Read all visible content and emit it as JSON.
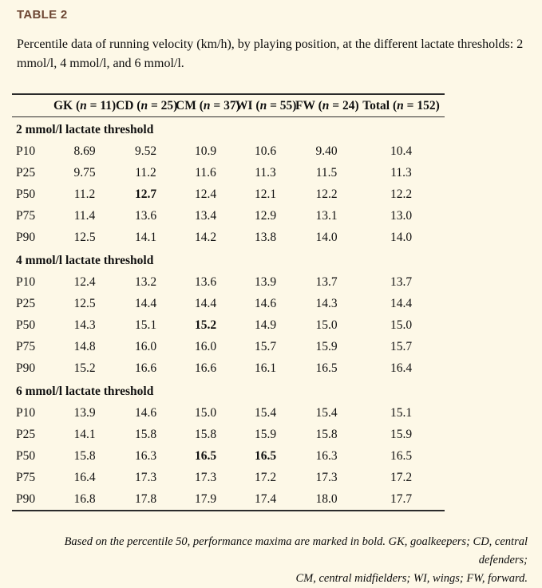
{
  "page": {
    "background_color": "#fdf8e7",
    "title_color": "#6d4633",
    "rule_color": "#2b2b2b"
  },
  "table_label": "TABLE 2",
  "caption_lines": [
    "Percentile data of running velocity (km/h), by playing position, at the different lactate thresholds: 2",
    "mmol/l, 4 mmol/l, and 6 mmol/l."
  ],
  "table": {
    "columns": [
      {
        "prefix": "GK (",
        "n": "n",
        "suffix": " = 11)"
      },
      {
        "prefix": "CD (",
        "n": "n",
        "suffix": " = 25)"
      },
      {
        "prefix": "CM (",
        "n": "n",
        "suffix": " = 37)"
      },
      {
        "prefix": "WI (",
        "n": "n",
        "suffix": " = 55)"
      },
      {
        "prefix": "FW (",
        "n": "n",
        "suffix": " = 24)"
      },
      {
        "prefix": "Total (",
        "n": "n",
        "suffix": " = 152)"
      }
    ],
    "sections": [
      {
        "header": "2 mmol/l lactate threshold",
        "rows": [
          {
            "label": "P10",
            "values": [
              "8.69",
              "9.52",
              "10.9",
              "10.6",
              "9.40",
              "10.4"
            ],
            "bold": []
          },
          {
            "label": "P25",
            "values": [
              "9.75",
              "11.2",
              "11.6",
              "11.3",
              "11.5",
              "11.3"
            ],
            "bold": []
          },
          {
            "label": "P50",
            "values": [
              "11.2",
              "12.7",
              "12.4",
              "12.1",
              "12.2",
              "12.2"
            ],
            "bold": [
              1
            ]
          },
          {
            "label": "P75",
            "values": [
              "11.4",
              "13.6",
              "13.4",
              "12.9",
              "13.1",
              "13.0"
            ],
            "bold": []
          },
          {
            "label": "P90",
            "values": [
              "12.5",
              "14.1",
              "14.2",
              "13.8",
              "14.0",
              "14.0"
            ],
            "bold": []
          }
        ]
      },
      {
        "header": "4 mmol/l lactate threshold",
        "rows": [
          {
            "label": "P10",
            "values": [
              "12.4",
              "13.2",
              "13.6",
              "13.9",
              "13.7",
              "13.7"
            ],
            "bold": []
          },
          {
            "label": "P25",
            "values": [
              "12.5",
              "14.4",
              "14.4",
              "14.6",
              "14.3",
              "14.4"
            ],
            "bold": []
          },
          {
            "label": "P50",
            "values": [
              "14.3",
              "15.1",
              "15.2",
              "14.9",
              "15.0",
              "15.0"
            ],
            "bold": [
              2
            ]
          },
          {
            "label": "P75",
            "values": [
              "14.8",
              "16.0",
              "16.0",
              "15.7",
              "15.9",
              "15.7"
            ],
            "bold": []
          },
          {
            "label": "P90",
            "values": [
              "15.2",
              "16.6",
              "16.6",
              "16.1",
              "16.5",
              "16.4"
            ],
            "bold": []
          }
        ]
      },
      {
        "header": "6 mmol/l lactate threshold",
        "rows": [
          {
            "label": "P10",
            "values": [
              "13.9",
              "14.6",
              "15.0",
              "15.4",
              "15.4",
              "15.1"
            ],
            "bold": []
          },
          {
            "label": "P25",
            "values": [
              "14.1",
              "15.8",
              "15.8",
              "15.9",
              "15.8",
              "15.9"
            ],
            "bold": []
          },
          {
            "label": "P50",
            "values": [
              "15.8",
              "16.3",
              "16.5",
              "16.5",
              "16.3",
              "16.5"
            ],
            "bold": [
              2,
              3
            ]
          },
          {
            "label": "P75",
            "values": [
              "16.4",
              "17.3",
              "17.3",
              "17.2",
              "17.3",
              "17.2"
            ],
            "bold": []
          },
          {
            "label": "P90",
            "values": [
              "16.8",
              "17.8",
              "17.9",
              "17.4",
              "18.0",
              "17.7"
            ],
            "bold": []
          }
        ]
      }
    ]
  },
  "footnote_lines": [
    "Based on the percentile 50, performance maxima are marked in bold. GK, goalkeepers; CD, central defenders;",
    "CM, central midfielders; WI, wings; FW, forward."
  ]
}
